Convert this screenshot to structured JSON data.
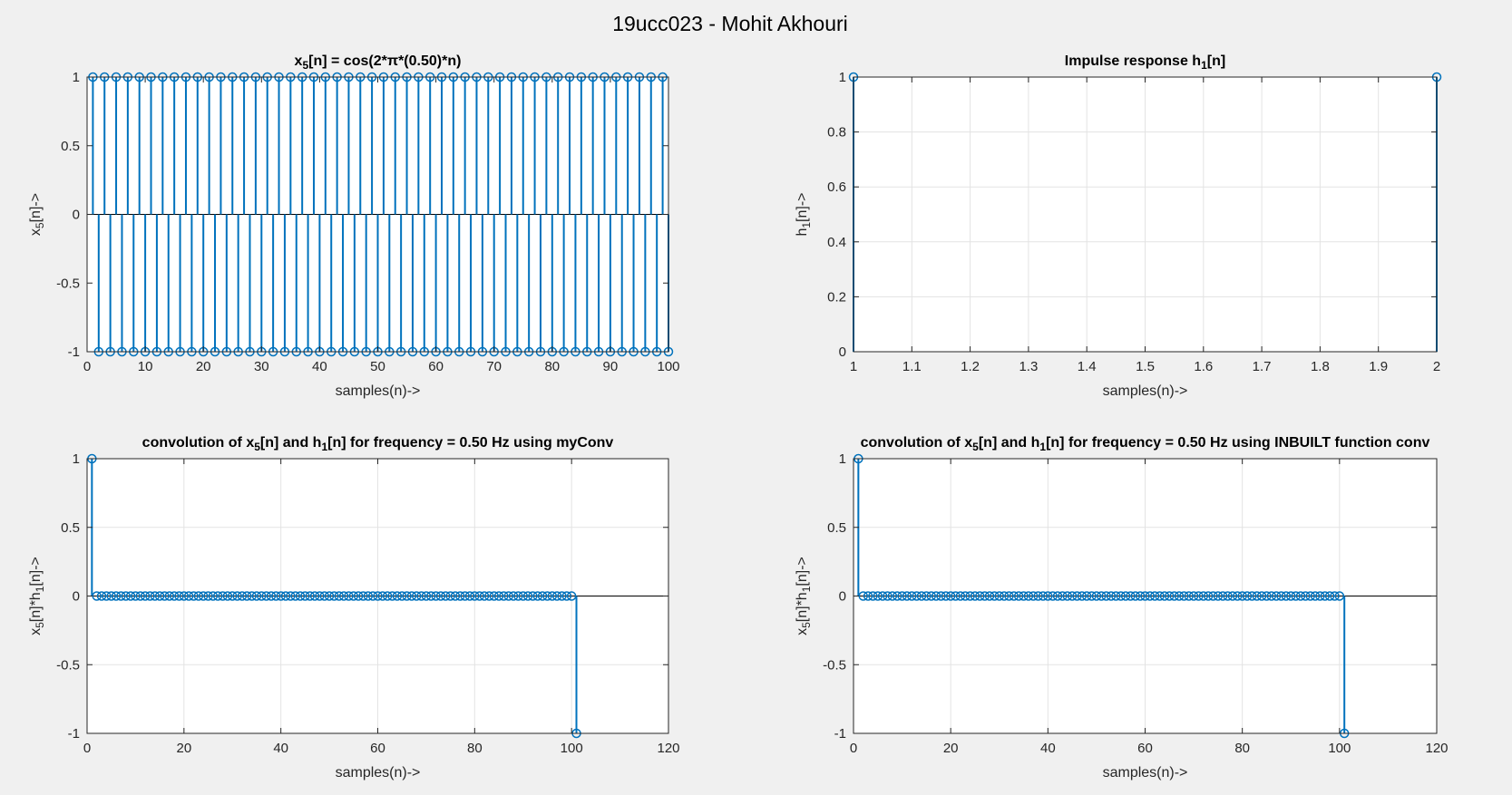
{
  "figure": {
    "suptitle": "19ucc023 - Mohit Akhouri"
  },
  "colors": {
    "stem": "#0072BD",
    "background": "#f0f0f0",
    "axes_bg": "#ffffff",
    "grid": "#e3e3e3",
    "axis": "#262626"
  },
  "chart_data": [
    {
      "type": "stem",
      "title": "x_5[n] = cos(2*π*(0.50)*n)",
      "xlabel": "samples(n)->",
      "ylabel": "x_5[n]->",
      "xlim": [
        0,
        100
      ],
      "ylim": [
        -1,
        1
      ],
      "xticks": [
        0,
        10,
        20,
        30,
        40,
        50,
        60,
        70,
        80,
        90,
        100
      ],
      "yticks": [
        -1,
        -0.5,
        0,
        0.5,
        1
      ],
      "grid": false,
      "series": [
        {
          "n_start": 1,
          "n_end": 100,
          "values_pattern": [
            1,
            -1
          ]
        }
      ]
    },
    {
      "type": "stem",
      "title": "Impulse response h_1[n]",
      "xlabel": "samples(n)->",
      "ylabel": "h_1[n]->",
      "xlim": [
        1,
        2
      ],
      "ylim": [
        0,
        1
      ],
      "xticks": [
        1,
        1.1,
        1.2,
        1.3,
        1.4,
        1.5,
        1.6,
        1.7,
        1.8,
        1.9,
        2
      ],
      "yticks": [
        0,
        0.2,
        0.4,
        0.6,
        0.8,
        1
      ],
      "grid": true,
      "series": [
        {
          "x": [
            1,
            2
          ],
          "y": [
            1,
            1
          ]
        }
      ]
    },
    {
      "type": "stem",
      "title": "convolution of x_5[n] and h_1[n] for frequency = 0.50 Hz using myConv",
      "xlabel": "samples(n)->",
      "ylabel": "x_5[n]*h_1[n]->",
      "xlim": [
        0,
        120
      ],
      "ylim": [
        -1,
        1
      ],
      "xticks": [
        0,
        20,
        40,
        60,
        80,
        100,
        120
      ],
      "yticks": [
        -1,
        -0.5,
        0,
        0.5,
        1
      ],
      "grid": true,
      "series": [
        {
          "n_start": 1,
          "n_end": 101,
          "first_value": 1,
          "last_value": -1,
          "other_value": 0
        }
      ]
    },
    {
      "type": "stem",
      "title": "convolution of x_5[n] and h_1[n] for frequency = 0.50 Hz using INBUILT function conv",
      "xlabel": "samples(n)->",
      "ylabel": "x_5[n]*h_1[n]->",
      "xlim": [
        0,
        120
      ],
      "ylim": [
        -1,
        1
      ],
      "xticks": [
        0,
        20,
        40,
        60,
        80,
        100,
        120
      ],
      "yticks": [
        -1,
        -0.5,
        0,
        0.5,
        1
      ],
      "grid": true,
      "series": [
        {
          "n_start": 1,
          "n_end": 101,
          "first_value": 1,
          "last_value": -1,
          "other_value": 0
        }
      ]
    }
  ]
}
